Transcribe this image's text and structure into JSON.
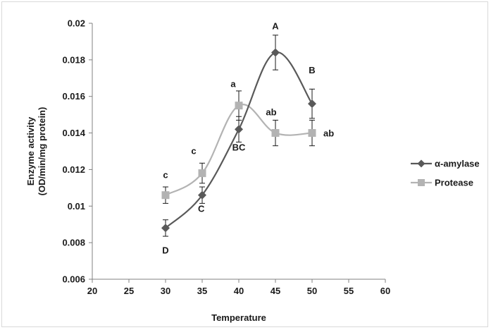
{
  "chart_data": {
    "type": "line",
    "title": "",
    "xlabel": "Temperature",
    "ylabel": [
      "Enzyme activity",
      "(OD/min/mg protein)"
    ],
    "xlim": [
      20,
      60
    ],
    "ylim": [
      0.006,
      0.02
    ],
    "x_ticks": [
      "20",
      "25",
      "30",
      "35",
      "40",
      "45",
      "50",
      "55",
      "60"
    ],
    "y_ticks": [
      "0.006",
      "0.008",
      "0.01",
      "0.012",
      "0.014",
      "0.016",
      "0.018",
      "0.02"
    ],
    "grid": false,
    "legend_position": "right",
    "series": [
      {
        "name": "α-amylase",
        "color": "#595959",
        "marker": "diamond",
        "x": [
          30,
          35,
          40,
          45,
          50
        ],
        "y": [
          0.0088,
          0.0106,
          0.0142,
          0.0184,
          0.0156
        ],
        "error": [
          0.00045,
          0.00045,
          0.0007,
          0.00095,
          0.0008
        ],
        "letters": [
          "D",
          "C",
          "BC",
          "A",
          "B"
        ]
      },
      {
        "name": "Protease",
        "color": "#b3b3b3",
        "marker": "square",
        "x": [
          30,
          35,
          40,
          45,
          50
        ],
        "y": [
          0.0106,
          0.0118,
          0.0155,
          0.014,
          0.014
        ],
        "error": [
          0.00045,
          0.00055,
          0.0008,
          0.0007,
          0.0007
        ],
        "letters": [
          "c",
          "c",
          "a",
          "ab",
          "ab"
        ]
      }
    ]
  }
}
